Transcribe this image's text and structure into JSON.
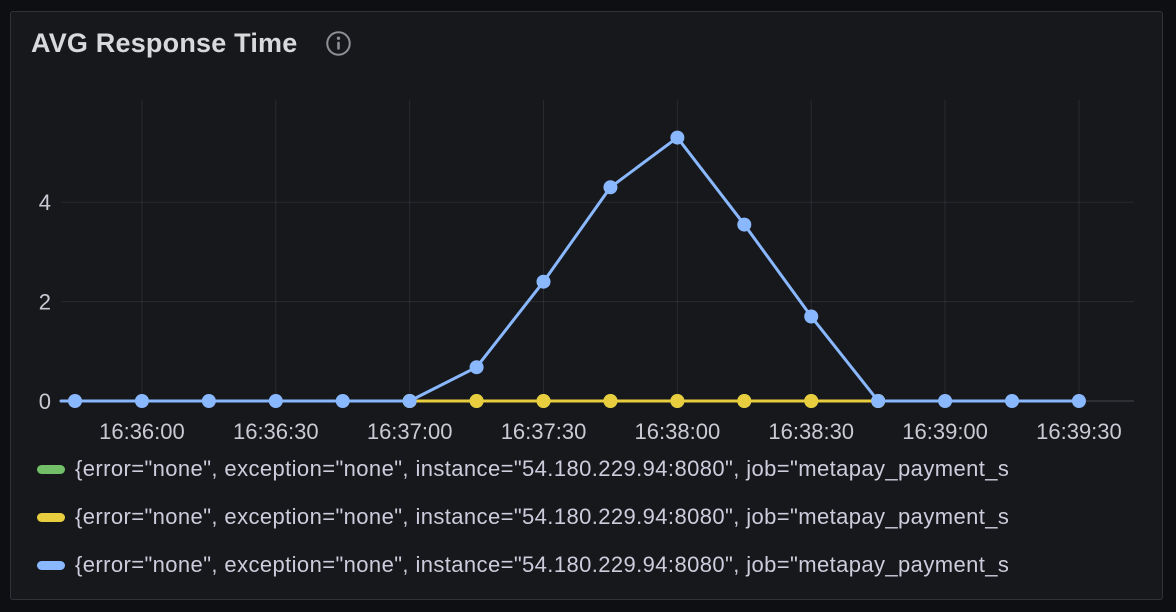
{
  "panel": {
    "title": "AVG Response Time"
  },
  "colors": {
    "page_bg": "#0e0f12",
    "panel_bg": "#17181c",
    "panel_border": "#313238",
    "text": "#ccccdc",
    "title_text": "#d8d9da",
    "green": "#73BF69",
    "yellow": "#E8CE3F",
    "blue": "#8AB8FF"
  },
  "legend": {
    "items": [
      {
        "series": "green",
        "color": "#73BF69",
        "label": "{error=\"none\", exception=\"none\", instance=\"54.180.229.94:8080\", job=\"metapay_payment_s"
      },
      {
        "series": "yellow",
        "color": "#E8CE3F",
        "label": "{error=\"none\", exception=\"none\", instance=\"54.180.229.94:8080\", job=\"metapay_payment_s"
      },
      {
        "series": "blue",
        "color": "#8AB8FF",
        "label": "{error=\"none\", exception=\"none\", instance=\"54.180.229.94:8080\", job=\"metapay_payment_s"
      }
    ]
  },
  "chart_data": {
    "type": "line",
    "title": "AVG Response Time",
    "x_times": [
      "16:35:45",
      "16:36:00",
      "16:36:15",
      "16:36:30",
      "16:36:45",
      "16:37:00",
      "16:37:15",
      "16:37:30",
      "16:37:45",
      "16:38:00",
      "16:38:15",
      "16:38:30",
      "16:38:45",
      "16:39:00",
      "16:39:15",
      "16:39:30"
    ],
    "series": [
      {
        "name": "green-series",
        "color": "#73BF69",
        "extend_left": false,
        "values": [
          null,
          null,
          null,
          null,
          null,
          0,
          0,
          0,
          0,
          0,
          0,
          0,
          0,
          null,
          null,
          null
        ]
      },
      {
        "name": "yellow-series",
        "color": "#E8CE3F",
        "extend_left": false,
        "values": [
          null,
          null,
          null,
          null,
          null,
          0,
          0,
          0,
          0,
          0,
          0,
          0,
          0,
          null,
          null,
          null
        ]
      },
      {
        "name": "blue-series",
        "color": "#8AB8FF",
        "extend_left": true,
        "values": [
          0,
          0,
          0,
          0,
          0,
          0,
          0.68,
          2.4,
          4.3,
          5.3,
          3.55,
          1.7,
          0,
          0,
          0,
          0
        ]
      }
    ],
    "ylim": [
      0,
      6
    ],
    "yticks": [
      0,
      2,
      4
    ],
    "xtick_labels": [
      "16:36:00",
      "16:36:30",
      "16:37:00",
      "16:37:30",
      "16:38:00",
      "16:38:30",
      "16:39:00",
      "16:39:30"
    ],
    "grid": true,
    "legend_position": "bottom"
  }
}
